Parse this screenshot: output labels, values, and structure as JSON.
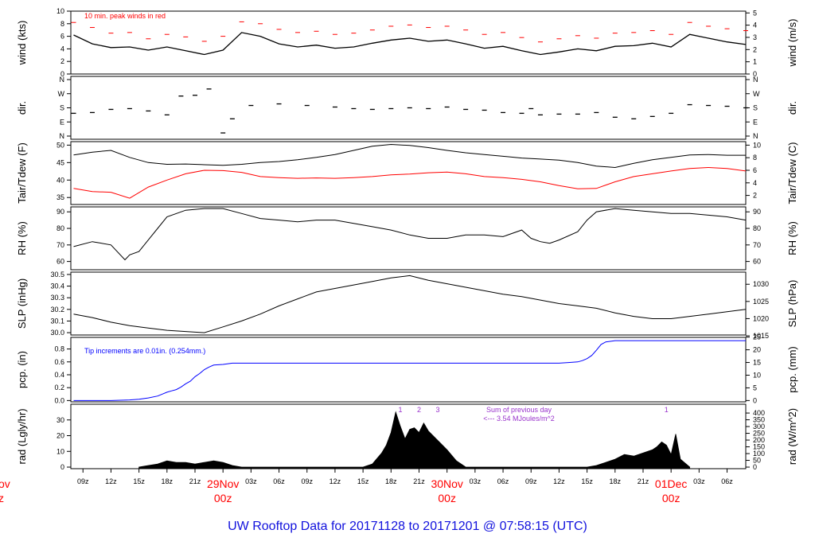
{
  "title": "UW Rooftop Data for 20171128  to  20171201 @ 07:58:15  (UTC)",
  "colors": {
    "black": "#000000",
    "red": "#ff0000",
    "blue": "#0000ff",
    "purple": "#9933cc",
    "title": "#1111dd"
  },
  "x_axis": {
    "hour_labels": [
      "09z",
      "12z",
      "15z",
      "18z",
      "21z",
      "03z",
      "06z",
      "09z",
      "12z",
      "15z",
      "18z",
      "21z",
      "03z",
      "06z",
      "09z",
      "12z",
      "15z",
      "18z",
      "21z",
      "03z",
      "06z"
    ],
    "hour_values": [
      9,
      12,
      15,
      18,
      21,
      27,
      30,
      33,
      36,
      39,
      42,
      45,
      51,
      54,
      57,
      60,
      63,
      66,
      69,
      75,
      78
    ],
    "day_labels": [
      {
        "date": "29Nov",
        "time": "00z",
        "hour": 24
      },
      {
        "date": "30Nov",
        "time": "00z",
        "hour": 48
      },
      {
        "date": "01Dec",
        "time": "00z",
        "hour": 72
      }
    ],
    "left_cut_labels": [
      "ov",
      "z"
    ],
    "range": [
      7.7,
      80
    ]
  },
  "panels": {
    "wind": {
      "left_label": "wind (kts)",
      "right_label": "wind (m/s)",
      "left_ticks": [
        "0",
        "2",
        "4",
        "6",
        "8",
        "10"
      ],
      "right_ticks": [
        "0",
        "1",
        "2",
        "3",
        "4",
        "5"
      ],
      "annotation": "10 min. peak winds in red",
      "ylim": [
        0,
        10
      ]
    },
    "dir": {
      "left_label": "dir.",
      "right_label": "dir.",
      "ticks": [
        "N",
        "E",
        "S",
        "W",
        "N"
      ]
    },
    "temp": {
      "left_label": "Tair/Tdew (F)",
      "right_label": "Tair/Tdew (C)",
      "left_ticks": [
        "35",
        "40",
        "45",
        "50"
      ],
      "right_ticks": [
        "2",
        "4",
        "6",
        "8",
        "10"
      ],
      "ylim": [
        33,
        51
      ]
    },
    "rh": {
      "left_label": "RH (%)",
      "right_label": "RH (%)",
      "ticks": [
        "60",
        "70",
        "80",
        "90"
      ],
      "ylim": [
        55,
        93
      ]
    },
    "slp": {
      "left_label": "SLP (inHg)",
      "right_label": "SLP (hPa)",
      "left_ticks": [
        "30.0",
        "30.1",
        "30.2",
        "30.3",
        "30.4",
        "30.5"
      ],
      "right_ticks": [
        "1015",
        "1020",
        "1025",
        "1030"
      ],
      "ylim": [
        29.98,
        30.52
      ]
    },
    "pcp": {
      "left_label": "pcp. (in)",
      "right_label": "pcp. (mm)",
      "left_ticks": [
        "0.0",
        "0.2",
        "0.4",
        "0.6",
        "0.8"
      ],
      "right_ticks": [
        "0",
        "5",
        "10",
        "15",
        "20",
        "25"
      ],
      "annotation": "Tip increments are 0.01in. (0.254mm.)",
      "ylim": [
        -0.02,
        0.98
      ]
    },
    "rad": {
      "left_label": "rad (Lgly/hr)",
      "right_label": "rad (W/m^2)",
      "left_ticks": [
        "0",
        "10",
        "20",
        "30"
      ],
      "right_ticks": [
        "0",
        "50",
        "100",
        "150",
        "200",
        "250",
        "300",
        "350",
        "400"
      ],
      "annotation_line1": "Sum of previous day",
      "annotation_line2": "<--- 3.54 MJoules/m^2",
      "peak_marks": [
        "1",
        "2",
        "3",
        "1"
      ],
      "ylim": [
        -1,
        40
      ]
    }
  },
  "chart_data": {
    "type": "line",
    "x_unit": "hours since 28Nov 00z",
    "series": [
      {
        "panel": "wind",
        "name": "10 min. peak winds in red",
        "color": "#ff0000",
        "x": [
          8,
          10,
          12,
          14,
          16,
          18,
          20,
          22,
          24,
          26,
          28,
          30,
          32,
          34,
          36,
          38,
          40,
          42,
          44,
          46,
          48,
          50,
          52,
          54,
          56,
          58,
          60,
          62,
          64,
          66,
          68,
          70,
          72,
          74,
          76,
          78,
          80
        ],
        "y": [
          8.2,
          7.4,
          6.5,
          6.6,
          5.6,
          6.3,
          5.9,
          5.2,
          6.0,
          8.3,
          8.0,
          7.1,
          6.6,
          6.8,
          6.3,
          6.5,
          7.0,
          7.6,
          7.8,
          7.4,
          7.6,
          7.0,
          6.3,
          6.6,
          5.8,
          5.1,
          5.6,
          6.1,
          5.7,
          6.5,
          6.6,
          6.9,
          6.3,
          8.2,
          7.6,
          7.2,
          6.9
        ]
      },
      {
        "panel": "wind",
        "color": "#000000",
        "x": [
          8,
          10,
          12,
          14,
          16,
          18,
          20,
          22,
          24,
          26,
          28,
          30,
          32,
          34,
          36,
          38,
          40,
          42,
          44,
          46,
          48,
          50,
          52,
          54,
          56,
          58,
          60,
          62,
          64,
          66,
          68,
          70,
          72,
          74,
          76,
          78,
          80
        ],
        "y": [
          6.2,
          4.8,
          4.2,
          4.3,
          3.8,
          4.3,
          3.7,
          3.1,
          3.8,
          6.6,
          6.0,
          4.8,
          4.3,
          4.6,
          4.1,
          4.3,
          4.9,
          5.4,
          5.7,
          5.2,
          5.4,
          4.8,
          4.1,
          4.4,
          3.7,
          3.1,
          3.5,
          4.0,
          3.7,
          4.4,
          4.5,
          4.9,
          4.3,
          6.3,
          5.7,
          5.1,
          4.7
        ]
      },
      {
        "panel": "dir",
        "color": "#000000",
        "unit": "degrees",
        "note": "ticks N=0/360, E=90, S=180, W=270",
        "x": [
          8,
          10,
          12,
          14,
          16,
          18,
          19.5,
          21,
          22.5,
          24,
          25,
          27,
          30,
          33,
          36,
          38,
          40,
          42,
          44,
          46,
          48,
          50,
          52,
          54,
          56,
          57,
          58,
          60,
          62,
          64,
          66,
          68,
          70,
          72,
          74,
          76,
          78,
          80
        ],
        "y": [
          145,
          150,
          170,
          175,
          160,
          135,
          255,
          260,
          300,
          20,
          110,
          195,
          205,
          195,
          185,
          175,
          170,
          175,
          180,
          175,
          185,
          170,
          165,
          150,
          145,
          175,
          135,
          140,
          140,
          150,
          120,
          110,
          125,
          145,
          200,
          195,
          190,
          180
        ]
      },
      {
        "panel": "temp",
        "name": "Tair",
        "color": "#000000",
        "x": [
          8,
          10,
          12,
          14,
          16,
          18,
          20,
          22,
          24,
          26,
          28,
          30,
          32,
          34,
          36,
          38,
          40,
          42,
          44,
          46,
          48,
          50,
          52,
          54,
          56,
          58,
          60,
          62,
          64,
          66,
          68,
          70,
          72,
          74,
          76,
          78,
          80
        ],
        "y": [
          47.2,
          48.0,
          48.5,
          46.5,
          45.0,
          44.5,
          44.6,
          44.4,
          44.2,
          44.5,
          45.0,
          45.3,
          45.8,
          46.5,
          47.3,
          48.5,
          49.7,
          50.2,
          49.9,
          49.3,
          48.5,
          47.8,
          47.3,
          46.8,
          46.3,
          46.0,
          45.7,
          45.0,
          44.0,
          43.6,
          44.8,
          45.8,
          46.5,
          47.2,
          47.3,
          47.1,
          47.1
        ]
      },
      {
        "panel": "temp",
        "name": "Tdew",
        "color": "#ff0000",
        "x": [
          8,
          10,
          12,
          14,
          16,
          18,
          20,
          22,
          24,
          26,
          28,
          30,
          32,
          34,
          36,
          38,
          40,
          42,
          44,
          46,
          48,
          50,
          52,
          54,
          56,
          58,
          60,
          62,
          64,
          66,
          68,
          70,
          72,
          74,
          76,
          78,
          80
        ],
        "y": [
          37.6,
          36.7,
          36.5,
          34.8,
          38.0,
          40.0,
          41.8,
          42.8,
          42.7,
          42.2,
          41.0,
          40.7,
          40.5,
          40.6,
          40.5,
          40.7,
          41.0,
          41.5,
          41.7,
          42.1,
          42.3,
          41.8,
          41.0,
          40.7,
          40.2,
          39.5,
          38.4,
          37.5,
          37.6,
          39.5,
          41.0,
          41.8,
          42.6,
          43.3,
          43.6,
          43.3,
          42.6
        ]
      },
      {
        "panel": "rh",
        "color": "#000000",
        "x": [
          8,
          10,
          12,
          13.5,
          14,
          15,
          16,
          17,
          18,
          20,
          22,
          24,
          26,
          28,
          30,
          32,
          34,
          36,
          38,
          40,
          42,
          44,
          46,
          48,
          50,
          52,
          54,
          56,
          57,
          58,
          59,
          60,
          62,
          63,
          64,
          66,
          68,
          70,
          72,
          74,
          76,
          78,
          80
        ],
        "y": [
          69,
          72,
          70,
          61,
          64,
          66,
          73,
          80,
          87,
          91,
          92,
          92,
          89,
          86,
          85,
          84,
          85,
          85,
          83,
          81,
          79,
          76,
          74,
          74,
          76,
          76,
          75,
          79,
          74,
          72,
          71,
          73,
          78,
          85,
          90,
          92,
          91,
          90,
          89,
          89,
          88,
          87,
          85
        ]
      },
      {
        "panel": "slp",
        "color": "#000000",
        "x": [
          8,
          10,
          12,
          14,
          16,
          18,
          20,
          22,
          24,
          26,
          28,
          30,
          32,
          34,
          36,
          38,
          40,
          42,
          44,
          46,
          48,
          50,
          52,
          54,
          56,
          58,
          60,
          62,
          64,
          66,
          68,
          70,
          72,
          74,
          76,
          78,
          80
        ],
        "y": [
          30.16,
          30.13,
          30.09,
          30.06,
          30.04,
          30.02,
          30.01,
          30.0,
          30.05,
          30.1,
          30.16,
          30.23,
          30.29,
          30.35,
          30.38,
          30.41,
          30.44,
          30.47,
          30.49,
          30.45,
          30.42,
          30.39,
          30.36,
          30.33,
          30.31,
          30.28,
          30.25,
          30.23,
          30.21,
          30.17,
          30.14,
          30.12,
          30.12,
          30.14,
          30.16,
          30.18,
          30.2
        ]
      },
      {
        "panel": "pcp",
        "name": "Tip increments are 0.01in. (0.254mm.)",
        "color": "#0000ff",
        "x": [
          8,
          12,
          14,
          15,
          16,
          17,
          17.5,
          18,
          18.5,
          19,
          19.5,
          20,
          20.5,
          21,
          21.5,
          22,
          22.5,
          23,
          24,
          25,
          30,
          40,
          50,
          60,
          61,
          62,
          62.5,
          63,
          63.5,
          64,
          64.5,
          65,
          66,
          72,
          80
        ],
        "y": [
          0,
          0,
          0.01,
          0.02,
          0.04,
          0.07,
          0.1,
          0.13,
          0.15,
          0.17,
          0.21,
          0.26,
          0.3,
          0.37,
          0.42,
          0.48,
          0.52,
          0.55,
          0.56,
          0.58,
          0.58,
          0.58,
          0.58,
          0.58,
          0.59,
          0.6,
          0.62,
          0.65,
          0.7,
          0.78,
          0.87,
          0.91,
          0.93,
          0.93,
          0.93
        ]
      },
      {
        "panel": "rad",
        "color": "#000000",
        "x": [
          15,
          16,
          17,
          18,
          19,
          20,
          21,
          22,
          23,
          24,
          25,
          26,
          39,
          40,
          41,
          41.5,
          42,
          42.5,
          43,
          43.5,
          44,
          44.5,
          45,
          45.5,
          46,
          47,
          48,
          49,
          50,
          63,
          64,
          65,
          66,
          67,
          68,
          69,
          70,
          70.5,
          71,
          71.5,
          72,
          72.5,
          73,
          74
        ],
        "y": [
          0,
          1,
          2,
          4,
          3,
          3,
          2,
          3,
          4,
          3,
          1,
          0,
          0,
          2,
          9,
          14,
          22,
          35,
          26,
          18,
          24,
          25,
          22,
          28,
          23,
          17,
          11,
          4,
          0,
          0,
          1,
          3,
          5,
          8,
          7,
          9,
          11,
          13,
          16,
          14,
          8,
          21,
          5,
          0
        ]
      }
    ]
  }
}
